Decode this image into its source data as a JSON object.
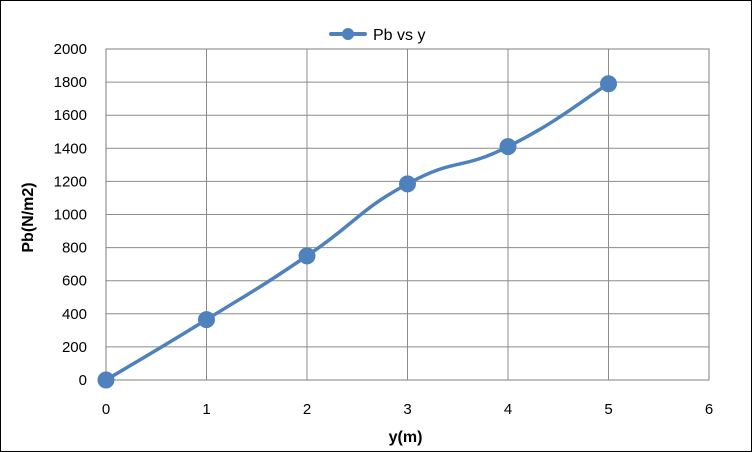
{
  "chart_data": {
    "type": "scatter",
    "title": "",
    "xlabel": "y(m)",
    "ylabel": "Pb(N/m2)",
    "xlim": [
      0,
      6
    ],
    "ylim": [
      0,
      2000
    ],
    "xticks": [
      0,
      1,
      2,
      3,
      4,
      5,
      6
    ],
    "yticks": [
      0,
      200,
      400,
      600,
      800,
      1000,
      1200,
      1400,
      1600,
      1800,
      2000
    ],
    "grid": true,
    "legend_position": "top",
    "line_style": "smoothed line with markers",
    "series": [
      {
        "name": "Pb vs y",
        "color": "#4f81bd",
        "x": [
          0,
          1,
          2,
          3,
          4,
          5
        ],
        "y": [
          0,
          365,
          750,
          1185,
          1410,
          1790
        ]
      }
    ]
  }
}
